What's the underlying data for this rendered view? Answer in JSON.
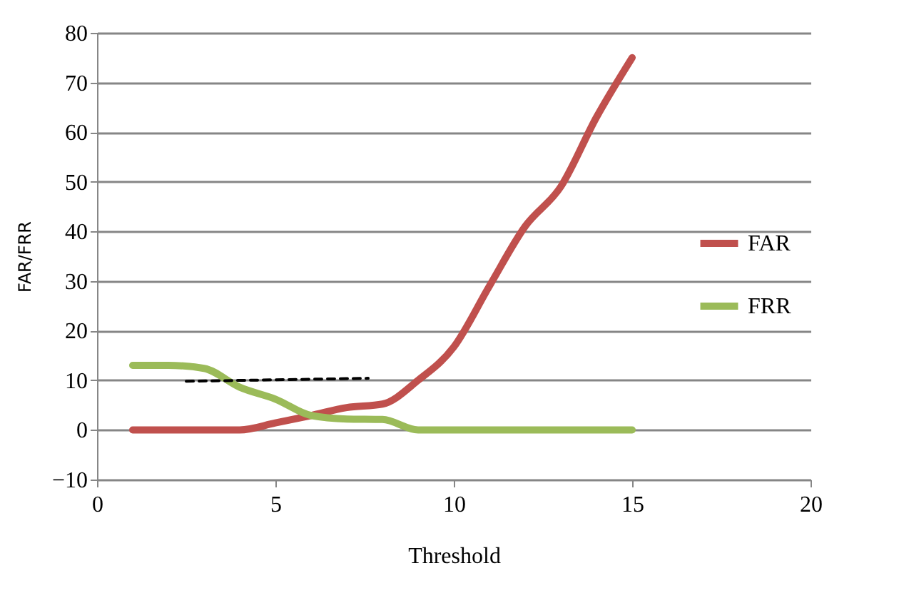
{
  "chart_data": {
    "type": "line",
    "xlabel": "Threshold",
    "ylabel": "FAR/FRR",
    "xlim": [
      0,
      20
    ],
    "xticks": [
      0,
      5,
      10,
      15,
      20
    ],
    "ylim": [
      -10,
      80
    ],
    "yticks": [
      -10,
      0,
      10,
      20,
      30,
      40,
      50,
      60,
      70,
      80
    ],
    "grid": "y",
    "legend": "right",
    "marker": "none",
    "line_style": "solid",
    "x": [
      1,
      2,
      3,
      4,
      5,
      6,
      7,
      8,
      9,
      10,
      11,
      12,
      13,
      14,
      15
    ],
    "series": [
      {
        "name": "FAR",
        "color": "#c0504d",
        "values": [
          0,
          0,
          0,
          0,
          1.4,
          2.9,
          4.5,
          5.2,
          10,
          16.7,
          29,
          41,
          49,
          63,
          75
        ]
      },
      {
        "name": "FRR",
        "color": "#9bbb59",
        "values": [
          13,
          13,
          12.4,
          8.6,
          6.2,
          2.9,
          2.2,
          2.1,
          0,
          0,
          0,
          0,
          0,
          0,
          0
        ]
      },
      {
        "type": "line",
        "color": "#000000",
        "line_style": "dashed",
        "x": [
          2.5,
          7.6
        ],
        "values": [
          9.8,
          10.4
        ]
      }
    ]
  }
}
